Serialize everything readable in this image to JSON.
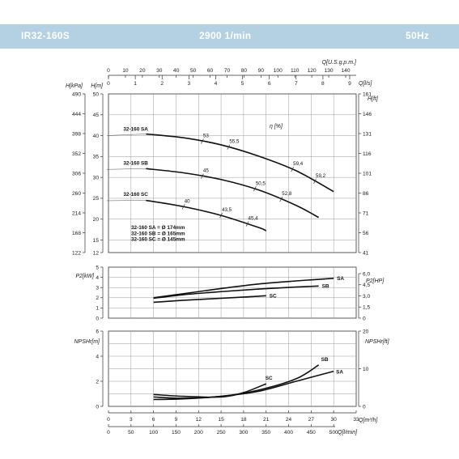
{
  "header": {
    "model": "IR32-160S",
    "speed": "2900 1/min",
    "frequency": "50Hz"
  },
  "chart_data": [
    {
      "type": "line",
      "name": "head",
      "axes": {
        "top_gpm": {
          "label": "Q[U.S.g.p.m.]",
          "ticks": [
            "0",
            "10",
            "20",
            "30",
            "40",
            "50",
            "60",
            "70",
            "80",
            "90",
            "100",
            "110",
            "120",
            "130",
            "140"
          ]
        },
        "top_ls": {
          "label": "Q[l/s]",
          "ticks": [
            "0",
            "1",
            "2",
            "3",
            "4",
            "5",
            "6",
            "7",
            "8",
            "9"
          ]
        },
        "left_m": {
          "label": "H[m]",
          "ticks": [
            "50",
            "45",
            "40",
            "35",
            "30",
            "25",
            "20",
            "15",
            "12"
          ],
          "ylim": [
            12,
            50
          ]
        },
        "left_kpa": {
          "label": "H[kPa]",
          "ticks": [
            "490",
            "444",
            "398",
            "352",
            "306",
            "260",
            "214",
            "168",
            "122"
          ]
        },
        "right_ft": {
          "label": "H[ft]",
          "ticks": [
            "161",
            "146",
            "131",
            "116",
            "101",
            "86",
            "71",
            "56",
            "41"
          ]
        }
      },
      "efficiency_label": "η [%]",
      "series": [
        {
          "name": "32-160 SA",
          "x": [
            0,
            5,
            10,
            15,
            20,
            25,
            30
          ],
          "y": [
            40.6,
            40.4,
            39.5,
            37.8,
            35.1,
            31.6,
            26.6
          ]
        },
        {
          "name": "32-160 SB",
          "x": [
            0,
            5,
            10,
            15,
            20,
            25,
            28
          ],
          "y": [
            32.5,
            32.1,
            31.1,
            29.5,
            27.0,
            23.3,
            20.4
          ]
        },
        {
          "name": "32-160 SC",
          "x": [
            0,
            5,
            10,
            15,
            20,
            21
          ],
          "y": [
            25.0,
            24.5,
            23.0,
            20.9,
            18.0,
            17.2
          ]
        }
      ],
      "efficiency_marks": [
        {
          "series": 0,
          "x": 12.5,
          "label": "53"
        },
        {
          "series": 0,
          "x": 16,
          "label": "55,5"
        },
        {
          "series": 0,
          "x": 24.5,
          "label": "59,4"
        },
        {
          "series": 0,
          "x": 27.5,
          "label": "59,2"
        },
        {
          "series": 1,
          "x": 12.5,
          "label": "45"
        },
        {
          "series": 1,
          "x": 19.5,
          "label": "50,5"
        },
        {
          "series": 1,
          "x": 23,
          "label": "52,8"
        },
        {
          "series": 2,
          "x": 10,
          "label": "40"
        },
        {
          "series": 2,
          "x": 15,
          "label": "43,5"
        },
        {
          "series": 2,
          "x": 18.5,
          "label": "45,4"
        }
      ],
      "impeller_notes": [
        "32-160 SA = Ø 174mm",
        "32-160 SB = Ø 165mm",
        "32-160 SC = Ø 145mm"
      ]
    },
    {
      "type": "line",
      "name": "power",
      "axes": {
        "left": {
          "label": "P2[kW]",
          "ticks": [
            "5",
            "4",
            "3",
            "2",
            "1",
            "0"
          ],
          "ylim": [
            0,
            5
          ]
        },
        "right": {
          "label": "P2[HP]",
          "ticks": [
            "6,0",
            "4,5",
            "3,0",
            "1,5",
            "0"
          ]
        }
      },
      "series": [
        {
          "name": "SA",
          "x": [
            6,
            10,
            15,
            20,
            25,
            30
          ],
          "y": [
            2.0,
            2.4,
            2.9,
            3.35,
            3.65,
            3.9
          ]
        },
        {
          "name": "SB",
          "x": [
            6,
            10,
            15,
            20,
            25,
            28
          ],
          "y": [
            1.95,
            2.3,
            2.6,
            2.85,
            3.05,
            3.15
          ]
        },
        {
          "name": "SC",
          "x": [
            6,
            10,
            15,
            20,
            21
          ],
          "y": [
            1.55,
            1.75,
            1.95,
            2.15,
            2.2
          ]
        }
      ]
    },
    {
      "type": "line",
      "name": "npsh",
      "axes": {
        "left": {
          "label": "NPSHr[m]",
          "ticks": [
            "6",
            "4",
            "2",
            "0"
          ],
          "ylim": [
            0,
            6
          ]
        },
        "right": {
          "label": "NPSHr[ft]",
          "ticks": [
            "20",
            "10",
            "0"
          ]
        },
        "bottom_m3h": {
          "label": "Q[m³/h]",
          "ticks": [
            "0",
            "3",
            "6",
            "9",
            "12",
            "15",
            "18",
            "21",
            "24",
            "27",
            "30",
            "33"
          ]
        },
        "bottom_lmin": {
          "label": "Q[l/min]",
          "ticks": [
            "0",
            "50",
            "100",
            "150",
            "200",
            "250",
            "300",
            "350",
            "400",
            "450",
            "500"
          ]
        }
      },
      "series": [
        {
          "name": "SA",
          "x": [
            6,
            10,
            15,
            20,
            25,
            30
          ],
          "y": [
            0.55,
            0.6,
            0.8,
            1.2,
            2.0,
            2.8
          ]
        },
        {
          "name": "SB",
          "x": [
            6,
            10,
            15,
            20,
            25,
            28
          ],
          "y": [
            0.75,
            0.65,
            0.8,
            1.3,
            2.2,
            3.3
          ]
        },
        {
          "name": "SC",
          "x": [
            6,
            10,
            15,
            18,
            21
          ],
          "y": [
            0.95,
            0.8,
            0.75,
            1.1,
            1.8
          ]
        }
      ]
    }
  ]
}
